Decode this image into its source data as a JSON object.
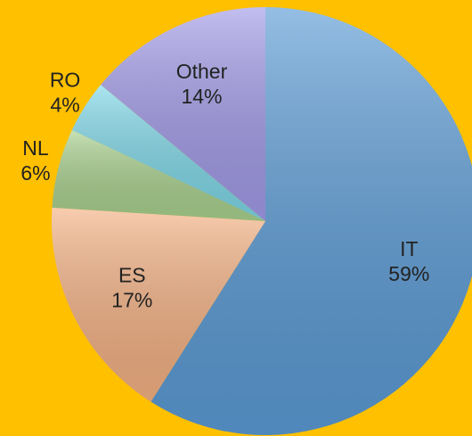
{
  "chart_data": {
    "type": "pie",
    "categories": [
      "IT",
      "ES",
      "NL",
      "RO",
      "Other"
    ],
    "values": [
      59,
      17,
      6,
      4,
      14
    ],
    "value_labels": [
      "59%",
      "17%",
      "6%",
      "4%",
      "14%"
    ],
    "colors": [
      "#5B9BD5",
      "#F4B183",
      "#A9D18E",
      "#7FD8E8",
      "#A29BE8"
    ]
  }
}
